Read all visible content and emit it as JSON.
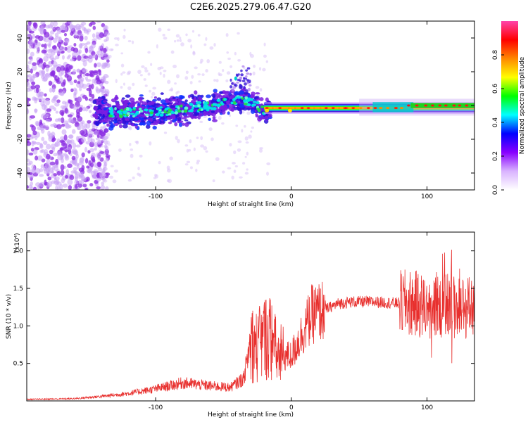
{
  "title": "C2E6.2025.279.06.47.G20",
  "chart_data": [
    {
      "type": "heatmap",
      "xlabel": "Height of straight line (km)",
      "ylabel": "Frequency (Hz)",
      "xlim": [
        -195,
        135
      ],
      "ylim": [
        -50,
        50
      ],
      "xticks": [
        -100,
        0,
        100
      ],
      "yticks": [
        -40,
        -20,
        0,
        20,
        40
      ],
      "colorbar": {
        "label": "Normalized spectral amplitude",
        "range": [
          0,
          1
        ],
        "ticks": [
          "0.0",
          "0.2",
          "0.4",
          "0.6",
          "0.8"
        ],
        "colors": [
          "#ffffff",
          "#d9b3ff",
          "#8800ff",
          "#0000ff",
          "#00ffff",
          "#00ff00",
          "#ffff00",
          "#ff8800",
          "#ff0000",
          "#ff44aa"
        ]
      },
      "ridge": [
        {
          "x": -145,
          "y": -4
        },
        {
          "x": -100,
          "y": -4
        },
        {
          "x": -60,
          "y": 0
        },
        {
          "x": -35,
          "y": 4
        },
        {
          "x": -20,
          "y": -3
        },
        {
          "x": 0,
          "y": -2
        },
        {
          "x": 60,
          "y": -1
        },
        {
          "x": 90,
          "y": 0
        },
        {
          "x": 135,
          "y": 0
        }
      ]
    },
    {
      "type": "line",
      "xlabel": "Height of straight line (km)",
      "ylabel": "SNR (10 * v/v)",
      "yunit": "(x10⁴)",
      "xlim": [
        -195,
        135
      ],
      "ylim": [
        0,
        2.25
      ],
      "xticks": [
        -100,
        0,
        100
      ],
      "yticks": [
        "0.5",
        "1.0",
        "1.5",
        "2.0"
      ],
      "color": "#e8302e",
      "series": [
        {
          "x": [
            -195,
            -160,
            -140,
            -120,
            -100,
            -80,
            -60,
            -45,
            -35,
            -30,
            -25,
            -20,
            -15,
            -10,
            0,
            8,
            15,
            25,
            35,
            45,
            60,
            80,
            90,
            100,
            110,
            120,
            135
          ],
          "y": [
            0.02,
            0.03,
            0.06,
            0.1,
            0.16,
            0.24,
            0.2,
            0.18,
            0.3,
            0.8,
            0.7,
            0.85,
            0.85,
            0.6,
            0.6,
            0.9,
            1.15,
            1.22,
            1.3,
            1.32,
            1.32,
            1.3,
            1.3,
            1.25,
            1.3,
            1.25,
            1.25
          ]
        }
      ]
    }
  ]
}
